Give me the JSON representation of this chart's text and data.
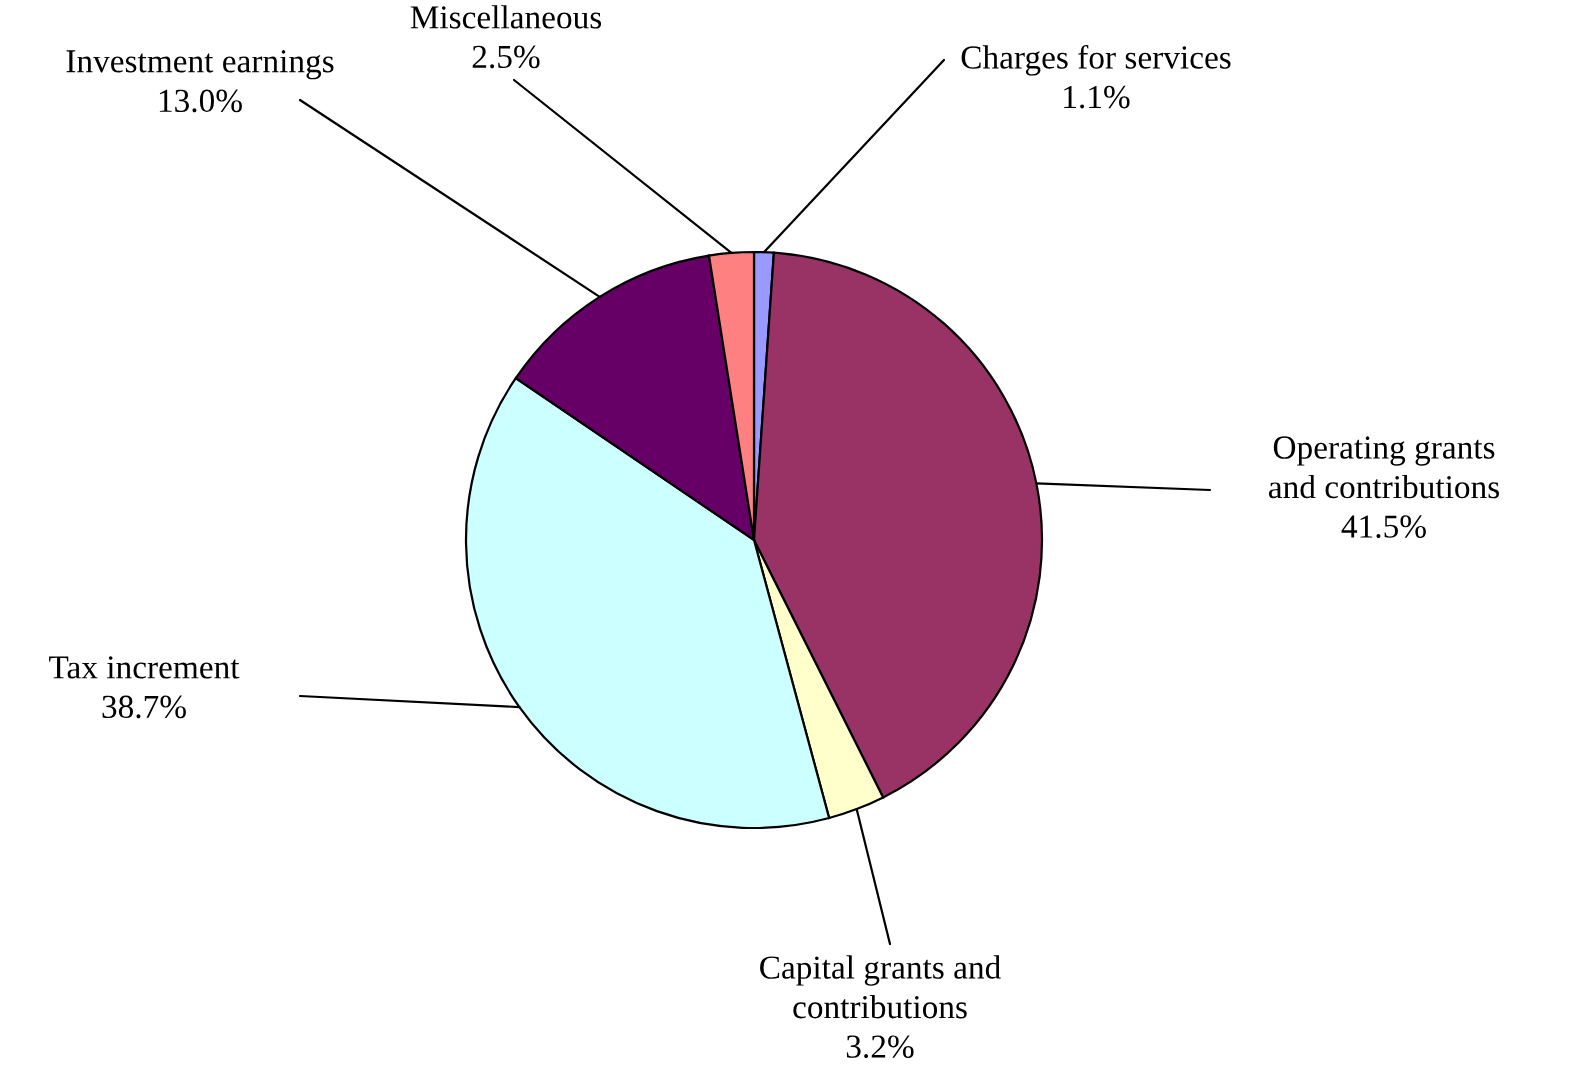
{
  "chart_data": {
    "type": "pie",
    "categories": [
      "Charges for services",
      "Operating grants and contributions",
      "Capital grants and contributions",
      "Tax increment",
      "Investment earnings",
      "Miscellaneous"
    ],
    "values": [
      1.1,
      41.5,
      3.2,
      38.7,
      13.0,
      2.5
    ],
    "colors": [
      "#9999ff",
      "#993366",
      "#ffffcc",
      "#ccffff",
      "#660066",
      "#ff8080"
    ],
    "value_labels": [
      "1.1%",
      "41.5%",
      "3.2%",
      "38.7%",
      "13.0%",
      "2.5%"
    ]
  }
}
